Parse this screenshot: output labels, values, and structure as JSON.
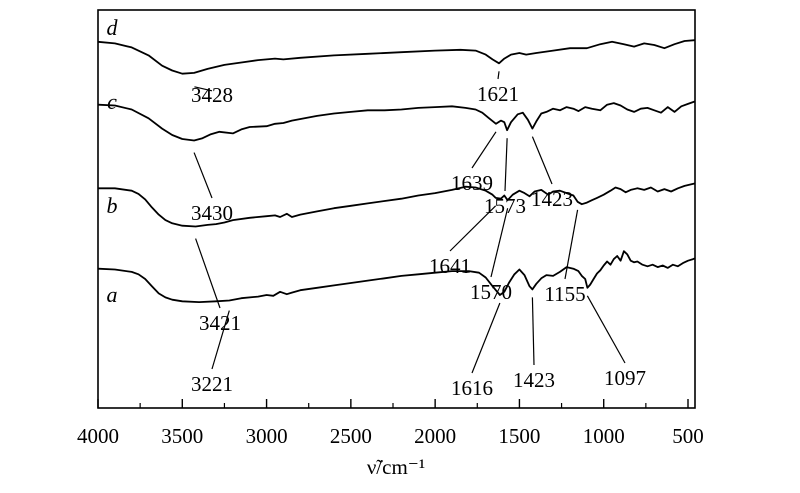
{
  "chart_data": {
    "type": "line",
    "xlabel": "ν̃/cm⁻¹",
    "xlim": [
      4000,
      450
    ],
    "x_reversed": true,
    "x_ticks": [
      4000,
      3500,
      3000,
      2500,
      2000,
      1500,
      1000,
      500
    ],
    "x_tick_labels": [
      "4000",
      "3500",
      "3000",
      "2500",
      "2000",
      "1500",
      "1000",
      "500"
    ],
    "y_axis": "arbitrary transmittance, curves offset vertically",
    "ylim": [
      0,
      100
    ],
    "colors": {
      "line": "#000000",
      "background": "#ffffff"
    },
    "series": [
      {
        "name": "d",
        "points": [
          [
            4000,
            92.0
          ],
          [
            3900,
            91.6
          ],
          [
            3800,
            90.6
          ],
          [
            3700,
            88.6
          ],
          [
            3620,
            86.0
          ],
          [
            3560,
            84.8
          ],
          [
            3500,
            84.0
          ],
          [
            3430,
            84.2
          ],
          [
            3350,
            85.2
          ],
          [
            3250,
            86.2
          ],
          [
            3150,
            86.8
          ],
          [
            3050,
            87.4
          ],
          [
            2950,
            87.8
          ],
          [
            2900,
            87.6
          ],
          [
            2800,
            88.0
          ],
          [
            2600,
            88.6
          ],
          [
            2400,
            89.0
          ],
          [
            2200,
            89.4
          ],
          [
            2000,
            89.8
          ],
          [
            1850,
            90.0
          ],
          [
            1760,
            89.8
          ],
          [
            1700,
            88.8
          ],
          [
            1660,
            87.6
          ],
          [
            1621,
            86.6
          ],
          [
            1590,
            87.8
          ],
          [
            1550,
            88.8
          ],
          [
            1500,
            89.2
          ],
          [
            1460,
            88.8
          ],
          [
            1400,
            89.2
          ],
          [
            1300,
            89.8
          ],
          [
            1200,
            90.4
          ],
          [
            1100,
            90.4
          ],
          [
            1020,
            91.4
          ],
          [
            950,
            92.0
          ],
          [
            880,
            91.4
          ],
          [
            820,
            90.8
          ],
          [
            760,
            91.6
          ],
          [
            700,
            91.2
          ],
          [
            640,
            90.4
          ],
          [
            580,
            91.4
          ],
          [
            520,
            92.2
          ],
          [
            460,
            92.4
          ]
        ],
        "peaks": [
          {
            "x": 3428,
            "label": "3428"
          },
          {
            "x": 1621,
            "label": "1621"
          }
        ]
      },
      {
        "name": "c",
        "points": [
          [
            4000,
            76.2
          ],
          [
            3900,
            76.0
          ],
          [
            3800,
            75.0
          ],
          [
            3700,
            72.8
          ],
          [
            3620,
            70.2
          ],
          [
            3560,
            68.6
          ],
          [
            3500,
            67.6
          ],
          [
            3430,
            67.2
          ],
          [
            3380,
            67.8
          ],
          [
            3330,
            68.8
          ],
          [
            3280,
            69.4
          ],
          [
            3200,
            69.0
          ],
          [
            3150,
            70.0
          ],
          [
            3100,
            70.6
          ],
          [
            3000,
            70.8
          ],
          [
            2950,
            71.4
          ],
          [
            2900,
            71.6
          ],
          [
            2850,
            72.2
          ],
          [
            2700,
            73.4
          ],
          [
            2600,
            74.0
          ],
          [
            2500,
            74.4
          ],
          [
            2400,
            74.8
          ],
          [
            2300,
            74.8
          ],
          [
            2200,
            75.0
          ],
          [
            2100,
            75.4
          ],
          [
            2000,
            75.6
          ],
          [
            1900,
            75.8
          ],
          [
            1820,
            75.4
          ],
          [
            1760,
            75.0
          ],
          [
            1720,
            74.2
          ],
          [
            1680,
            72.8
          ],
          [
            1639,
            71.4
          ],
          [
            1610,
            72.2
          ],
          [
            1590,
            71.8
          ],
          [
            1573,
            69.8
          ],
          [
            1550,
            71.8
          ],
          [
            1510,
            73.8
          ],
          [
            1480,
            74.2
          ],
          [
            1450,
            72.4
          ],
          [
            1423,
            70.2
          ],
          [
            1400,
            72.0
          ],
          [
            1370,
            74.0
          ],
          [
            1340,
            74.4
          ],
          [
            1300,
            75.2
          ],
          [
            1260,
            74.8
          ],
          [
            1220,
            75.6
          ],
          [
            1180,
            75.2
          ],
          [
            1150,
            74.6
          ],
          [
            1110,
            75.6
          ],
          [
            1070,
            75.2
          ],
          [
            1020,
            74.8
          ],
          [
            980,
            76.2
          ],
          [
            940,
            76.6
          ],
          [
            900,
            76.0
          ],
          [
            860,
            75.0
          ],
          [
            820,
            74.4
          ],
          [
            780,
            75.2
          ],
          [
            740,
            75.4
          ],
          [
            700,
            74.8
          ],
          [
            660,
            74.2
          ],
          [
            620,
            75.6
          ],
          [
            580,
            74.4
          ],
          [
            540,
            75.8
          ],
          [
            500,
            76.4
          ],
          [
            460,
            77.0
          ]
        ],
        "peaks": [
          {
            "x": 3430,
            "label": "3430"
          },
          {
            "x": 1639,
            "label": "1639"
          },
          {
            "x": 1573,
            "label": "1573"
          },
          {
            "x": 1423,
            "label": "1423"
          }
        ]
      },
      {
        "name": "b",
        "points": [
          [
            4000,
            55.2
          ],
          [
            3900,
            55.2
          ],
          [
            3800,
            54.6
          ],
          [
            3760,
            53.8
          ],
          [
            3720,
            52.4
          ],
          [
            3680,
            50.4
          ],
          [
            3640,
            48.6
          ],
          [
            3600,
            47.2
          ],
          [
            3560,
            46.4
          ],
          [
            3500,
            45.8
          ],
          [
            3421,
            45.6
          ],
          [
            3350,
            46.0
          ],
          [
            3300,
            46.2
          ],
          [
            3250,
            46.6
          ],
          [
            3200,
            47.2
          ],
          [
            3100,
            47.8
          ],
          [
            3000,
            48.2
          ],
          [
            2950,
            48.4
          ],
          [
            2920,
            48.0
          ],
          [
            2880,
            48.8
          ],
          [
            2850,
            48.0
          ],
          [
            2800,
            48.6
          ],
          [
            2700,
            49.4
          ],
          [
            2600,
            50.2
          ],
          [
            2500,
            50.8
          ],
          [
            2400,
            51.4
          ],
          [
            2300,
            52.0
          ],
          [
            2200,
            52.6
          ],
          [
            2100,
            53.4
          ],
          [
            2000,
            54.0
          ],
          [
            1900,
            54.8
          ],
          [
            1820,
            55.6
          ],
          [
            1760,
            55.4
          ],
          [
            1700,
            54.6
          ],
          [
            1660,
            53.6
          ],
          [
            1641,
            52.8
          ],
          [
            1610,
            52.6
          ],
          [
            1590,
            53.4
          ],
          [
            1570,
            52.2
          ],
          [
            1540,
            53.6
          ],
          [
            1500,
            54.6
          ],
          [
            1470,
            54.0
          ],
          [
            1440,
            53.2
          ],
          [
            1410,
            54.4
          ],
          [
            1370,
            54.8
          ],
          [
            1330,
            53.6
          ],
          [
            1300,
            54.4
          ],
          [
            1260,
            54.6
          ],
          [
            1220,
            54.0
          ],
          [
            1180,
            53.4
          ],
          [
            1155,
            51.8
          ],
          [
            1130,
            51.2
          ],
          [
            1100,
            51.6
          ],
          [
            1070,
            52.2
          ],
          [
            1040,
            52.8
          ],
          [
            1000,
            53.6
          ],
          [
            960,
            54.6
          ],
          [
            930,
            55.4
          ],
          [
            900,
            55.0
          ],
          [
            870,
            54.2
          ],
          [
            840,
            54.8
          ],
          [
            800,
            55.2
          ],
          [
            760,
            54.8
          ],
          [
            720,
            55.4
          ],
          [
            680,
            54.4
          ],
          [
            640,
            55.0
          ],
          [
            600,
            54.4
          ],
          [
            560,
            55.2
          ],
          [
            520,
            55.8
          ],
          [
            480,
            56.2
          ],
          [
            460,
            56.4
          ]
        ],
        "peaks": [
          {
            "x": 3421,
            "label": "3421"
          },
          {
            "x": 1641,
            "label": "1641"
          },
          {
            "x": 1570,
            "label": "1570"
          },
          {
            "x": 1155,
            "label": "1155"
          }
        ]
      },
      {
        "name": "a",
        "points": [
          [
            4000,
            35.0
          ],
          [
            3900,
            34.8
          ],
          [
            3800,
            34.2
          ],
          [
            3760,
            33.6
          ],
          [
            3720,
            32.4
          ],
          [
            3680,
            30.6
          ],
          [
            3640,
            28.8
          ],
          [
            3600,
            27.8
          ],
          [
            3560,
            27.2
          ],
          [
            3500,
            26.8
          ],
          [
            3400,
            26.6
          ],
          [
            3300,
            26.8
          ],
          [
            3221,
            27.0
          ],
          [
            3150,
            27.6
          ],
          [
            3050,
            28.0
          ],
          [
            3000,
            28.4
          ],
          [
            2960,
            28.2
          ],
          [
            2920,
            29.2
          ],
          [
            2880,
            28.6
          ],
          [
            2850,
            29.0
          ],
          [
            2800,
            29.6
          ],
          [
            2700,
            30.2
          ],
          [
            2600,
            30.8
          ],
          [
            2500,
            31.4
          ],
          [
            2400,
            32.0
          ],
          [
            2300,
            32.6
          ],
          [
            2200,
            33.2
          ],
          [
            2100,
            33.6
          ],
          [
            2000,
            34.0
          ],
          [
            1900,
            34.4
          ],
          [
            1800,
            34.4
          ],
          [
            1740,
            34.0
          ],
          [
            1700,
            32.8
          ],
          [
            1660,
            30.6
          ],
          [
            1616,
            28.4
          ],
          [
            1590,
            29.2
          ],
          [
            1560,
            31.6
          ],
          [
            1530,
            33.6
          ],
          [
            1500,
            34.8
          ],
          [
            1470,
            33.4
          ],
          [
            1440,
            30.6
          ],
          [
            1423,
            29.8
          ],
          [
            1400,
            31.2
          ],
          [
            1370,
            32.6
          ],
          [
            1340,
            33.4
          ],
          [
            1300,
            33.2
          ],
          [
            1260,
            34.2
          ],
          [
            1220,
            35.4
          ],
          [
            1180,
            35.0
          ],
          [
            1150,
            34.4
          ],
          [
            1130,
            33.2
          ],
          [
            1110,
            32.4
          ],
          [
            1097,
            30.2
          ],
          [
            1080,
            31.0
          ],
          [
            1060,
            32.4
          ],
          [
            1040,
            33.8
          ],
          [
            1020,
            34.6
          ],
          [
            1000,
            35.8
          ],
          [
            980,
            36.8
          ],
          [
            960,
            36.0
          ],
          [
            940,
            37.4
          ],
          [
            920,
            38.2
          ],
          [
            900,
            37.0
          ],
          [
            880,
            39.4
          ],
          [
            860,
            38.6
          ],
          [
            840,
            37.0
          ],
          [
            820,
            36.6
          ],
          [
            800,
            36.8
          ],
          [
            770,
            36.0
          ],
          [
            740,
            35.6
          ],
          [
            710,
            36.0
          ],
          [
            680,
            35.4
          ],
          [
            650,
            35.8
          ],
          [
            620,
            35.2
          ],
          [
            590,
            36.0
          ],
          [
            560,
            35.6
          ],
          [
            530,
            36.4
          ],
          [
            500,
            37.0
          ],
          [
            470,
            37.4
          ],
          [
            460,
            37.6
          ]
        ],
        "peaks": [
          {
            "x": 3221,
            "label": "3221"
          },
          {
            "x": 1616,
            "label": "1616"
          },
          {
            "x": 1423,
            "label": "1423"
          },
          {
            "x": 1097,
            "label": "1097"
          }
        ]
      }
    ]
  }
}
